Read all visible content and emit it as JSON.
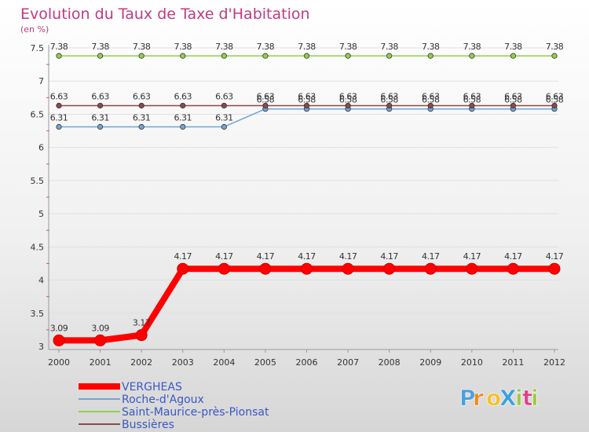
{
  "chart_data": {
    "type": "line",
    "title": "Evolution du Taux de Taxe d'Habitation",
    "ylabel": "(en %)",
    "xlabel": "",
    "ylim": [
      3,
      7.5
    ],
    "yticks": [
      "3",
      "3.5",
      "4",
      "4.5",
      "5",
      "5.5",
      "6",
      "6.5",
      "7",
      "7.5"
    ],
    "categories": [
      "2000",
      "2001",
      "2002",
      "2003",
      "2004",
      "2005",
      "2006",
      "2007",
      "2008",
      "2009",
      "2010",
      "2011",
      "2012"
    ],
    "series": [
      {
        "name": "Saint-Maurice-près-Pionsat",
        "color": "#8fd24a",
        "values": [
          7.38,
          7.38,
          7.38,
          7.38,
          7.38,
          7.38,
          7.38,
          7.38,
          7.38,
          7.38,
          7.38,
          7.38,
          7.38
        ],
        "labels": [
          "7.38",
          "7.38",
          "7.38",
          "7.38",
          "7.38",
          "7.38",
          "7.38",
          "7.38",
          "7.38",
          "7.38",
          "7.38",
          "7.38",
          "7.38"
        ]
      },
      {
        "name": "Roche-d'Agoux",
        "color": "#6fa5d8",
        "values": [
          6.31,
          6.31,
          6.31,
          6.31,
          6.31,
          6.58,
          6.58,
          6.58,
          6.58,
          6.58,
          6.58,
          6.58,
          6.58
        ],
        "labels": [
          "6.31",
          "6.31",
          "6.31",
          "6.31",
          "6.31",
          "6.58",
          "6.58",
          "6.58",
          "6.58",
          "6.58",
          "6.58",
          "6.58",
          "6.58"
        ]
      },
      {
        "name": "Bussières",
        "color": "#8b4a4a",
        "values": [
          6.63,
          6.63,
          6.63,
          6.63,
          6.63,
          6.63,
          6.63,
          6.63,
          6.63,
          6.63,
          6.63,
          6.63,
          6.63
        ],
        "labels": [
          "6.63",
          "6.63",
          "6.63",
          "6.63",
          "6.63",
          "6.63",
          "6.63",
          "6.63",
          "6.63",
          "6.63",
          "6.63",
          "6.63",
          "6.63"
        ]
      },
      {
        "name": "VERGHEAS",
        "color": "#ff0000",
        "values": [
          3.09,
          3.09,
          3.17,
          4.17,
          4.17,
          4.17,
          4.17,
          4.17,
          4.17,
          4.17,
          4.17,
          4.17,
          4.17
        ],
        "labels": [
          "3.09",
          "3.09",
          "3.17",
          "4.17",
          "4.17",
          "4.17",
          "4.17",
          "4.17",
          "4.17",
          "4.17",
          "4.17",
          "4.17",
          "4.17"
        ]
      }
    ],
    "legend": [
      "VERGHEAS",
      "Roche-d'Agoux",
      "Saint-Maurice-près-Pionsat",
      "Bussières"
    ]
  },
  "logo": {
    "text": "ProXiti",
    "letters": [
      "P",
      "r",
      "o",
      "X",
      "i",
      "t",
      "i"
    ],
    "colors": [
      "#4aa0e0",
      "#f08a1c",
      "#f2c12e",
      "#3aa0e0",
      "#9ccc3c",
      "#e0408a",
      "#9ccc3c"
    ]
  }
}
